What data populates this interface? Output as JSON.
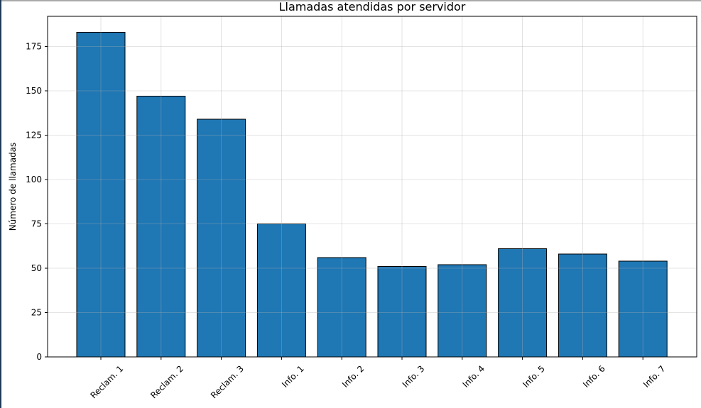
{
  "chart_data": {
    "type": "bar",
    "title": "Llamadas atendidas por servidor",
    "xlabel": "",
    "ylabel": "Número de llamadas",
    "categories": [
      "Reclam. 1",
      "Reclam. 2",
      "Reclam. 3",
      "Info. 1",
      "Info. 2",
      "Info. 3",
      "Info. 4",
      "Info. 5",
      "Info. 6",
      "Info. 7"
    ],
    "values": [
      183,
      147,
      134,
      75,
      56,
      51,
      52,
      61,
      58,
      54
    ],
    "ylim": [
      0,
      192
    ],
    "yticks": [
      0,
      25,
      50,
      75,
      100,
      125,
      150,
      175
    ],
    "grid": true,
    "bar_color": "#1f77b4",
    "edge_color": "#000000"
  }
}
